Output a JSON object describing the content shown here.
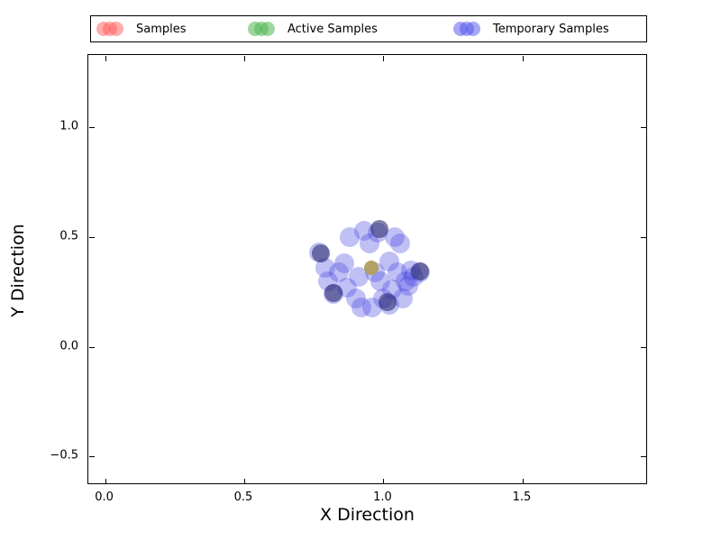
{
  "chart_data": {
    "type": "scatter",
    "title": "",
    "xlabel": "X Direction",
    "ylabel": "Y Direction",
    "xlim": [
      -0.06,
      1.95
    ],
    "ylim": [
      -0.63,
      1.33
    ],
    "xticks": [
      0.0,
      0.5,
      1.0,
      1.5
    ],
    "yticks": [
      -0.5,
      0.0,
      0.5,
      1.0
    ],
    "grid": false,
    "legend_position": "top",
    "legend": [
      {
        "label": "Samples",
        "color": "rgba(255,90,90,0.5)"
      },
      {
        "label": "Active Samples",
        "color": "rgba(80,180,80,0.55)"
      },
      {
        "label": "Temporary Samples",
        "color": "rgba(80,80,235,0.5)"
      }
    ],
    "series": [
      {
        "name": "temporary-samples",
        "color": "rgba(64,64,225,0.33)",
        "radius_px": 11,
        "points": [
          [
            0.77,
            0.43
          ],
          [
            0.79,
            0.36
          ],
          [
            0.8,
            0.3
          ],
          [
            0.82,
            0.24
          ],
          [
            0.84,
            0.34
          ],
          [
            0.86,
            0.38
          ],
          [
            0.88,
            0.5
          ],
          [
            0.9,
            0.22
          ],
          [
            0.92,
            0.18
          ],
          [
            0.93,
            0.53
          ],
          [
            0.95,
            0.47
          ],
          [
            0.96,
            0.18
          ],
          [
            0.97,
            0.34
          ],
          [
            0.98,
            0.52
          ],
          [
            1.0,
            0.22
          ],
          [
            1.02,
            0.39
          ],
          [
            1.02,
            0.19
          ],
          [
            1.03,
            0.26
          ],
          [
            1.05,
            0.34
          ],
          [
            1.06,
            0.47
          ],
          [
            1.07,
            0.22
          ],
          [
            1.08,
            0.3
          ],
          [
            1.1,
            0.35
          ],
          [
            1.11,
            0.32
          ],
          [
            1.13,
            0.34
          ],
          [
            0.91,
            0.32
          ],
          [
            0.99,
            0.3
          ],
          [
            1.04,
            0.5
          ],
          [
            0.87,
            0.27
          ],
          [
            1.09,
            0.28
          ]
        ]
      },
      {
        "name": "temporary-samples-dark",
        "color": "rgba(45,45,110,0.6)",
        "radius_px": 10,
        "points": [
          [
            0.775,
            0.425
          ],
          [
            0.985,
            0.535
          ],
          [
            1.13,
            0.345
          ],
          [
            1.015,
            0.205
          ],
          [
            0.82,
            0.245
          ]
        ]
      },
      {
        "name": "center-sample",
        "color": "rgba(178,158,92,0.95)",
        "radius_px": 8,
        "points": [
          [
            0.955,
            0.36
          ]
        ]
      }
    ]
  }
}
